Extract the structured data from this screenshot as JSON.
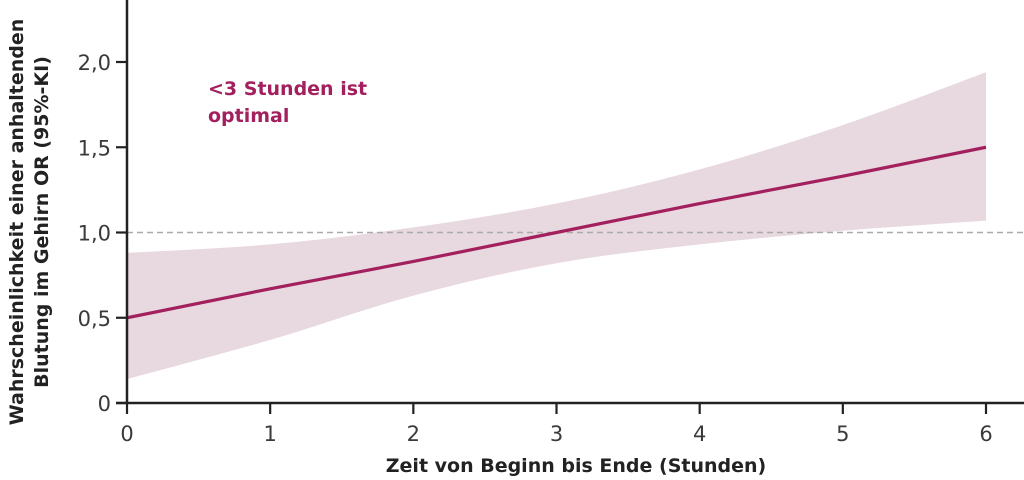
{
  "chart_data": {
    "type": "line",
    "title": "",
    "xlabel": "Zeit von Beginn bis Ende (Stunden)",
    "ylabel_line1": "Wahrscheinlichkeit einer anhaltenden",
    "ylabel_line2": "Blutung im Gehirn OR (95%-KI)",
    "ylabel": "Wahrscheinlichkeit einer anhaltenden Blutung im Gehirn OR (95%-KI)",
    "x_ticks": [
      "0",
      "1",
      "2",
      "3",
      "4",
      "5",
      "6"
    ],
    "y_ticks": [
      "0",
      "0,5",
      "1,0",
      "1,5",
      "2,0"
    ],
    "xlim": [
      0,
      6
    ],
    "ylim": [
      0,
      2.0
    ],
    "grid": false,
    "reference_line": {
      "y": 1.0,
      "style": "dashed",
      "color": "#aaaaaa"
    },
    "series": [
      {
        "name": "OR",
        "color": "#a3205f",
        "x": [
          0,
          1,
          2,
          3,
          4,
          5,
          6
        ],
        "values": [
          0.5,
          0.67,
          0.83,
          1.0,
          1.17,
          1.33,
          1.5
        ]
      }
    ],
    "confidence_band": {
      "name": "95%-KI",
      "color": "#e8d8df",
      "x": [
        0,
        1,
        2,
        3,
        4,
        5,
        6
      ],
      "upper": [
        0.88,
        0.93,
        1.03,
        1.17,
        1.37,
        1.63,
        1.94
      ],
      "lower": [
        0.14,
        0.37,
        0.63,
        0.82,
        0.93,
        1.01,
        1.07
      ]
    },
    "annotations": [
      {
        "text_line1": "<3 Stunden ist",
        "text_line2": "optimal",
        "color": "#a3205f"
      }
    ]
  }
}
